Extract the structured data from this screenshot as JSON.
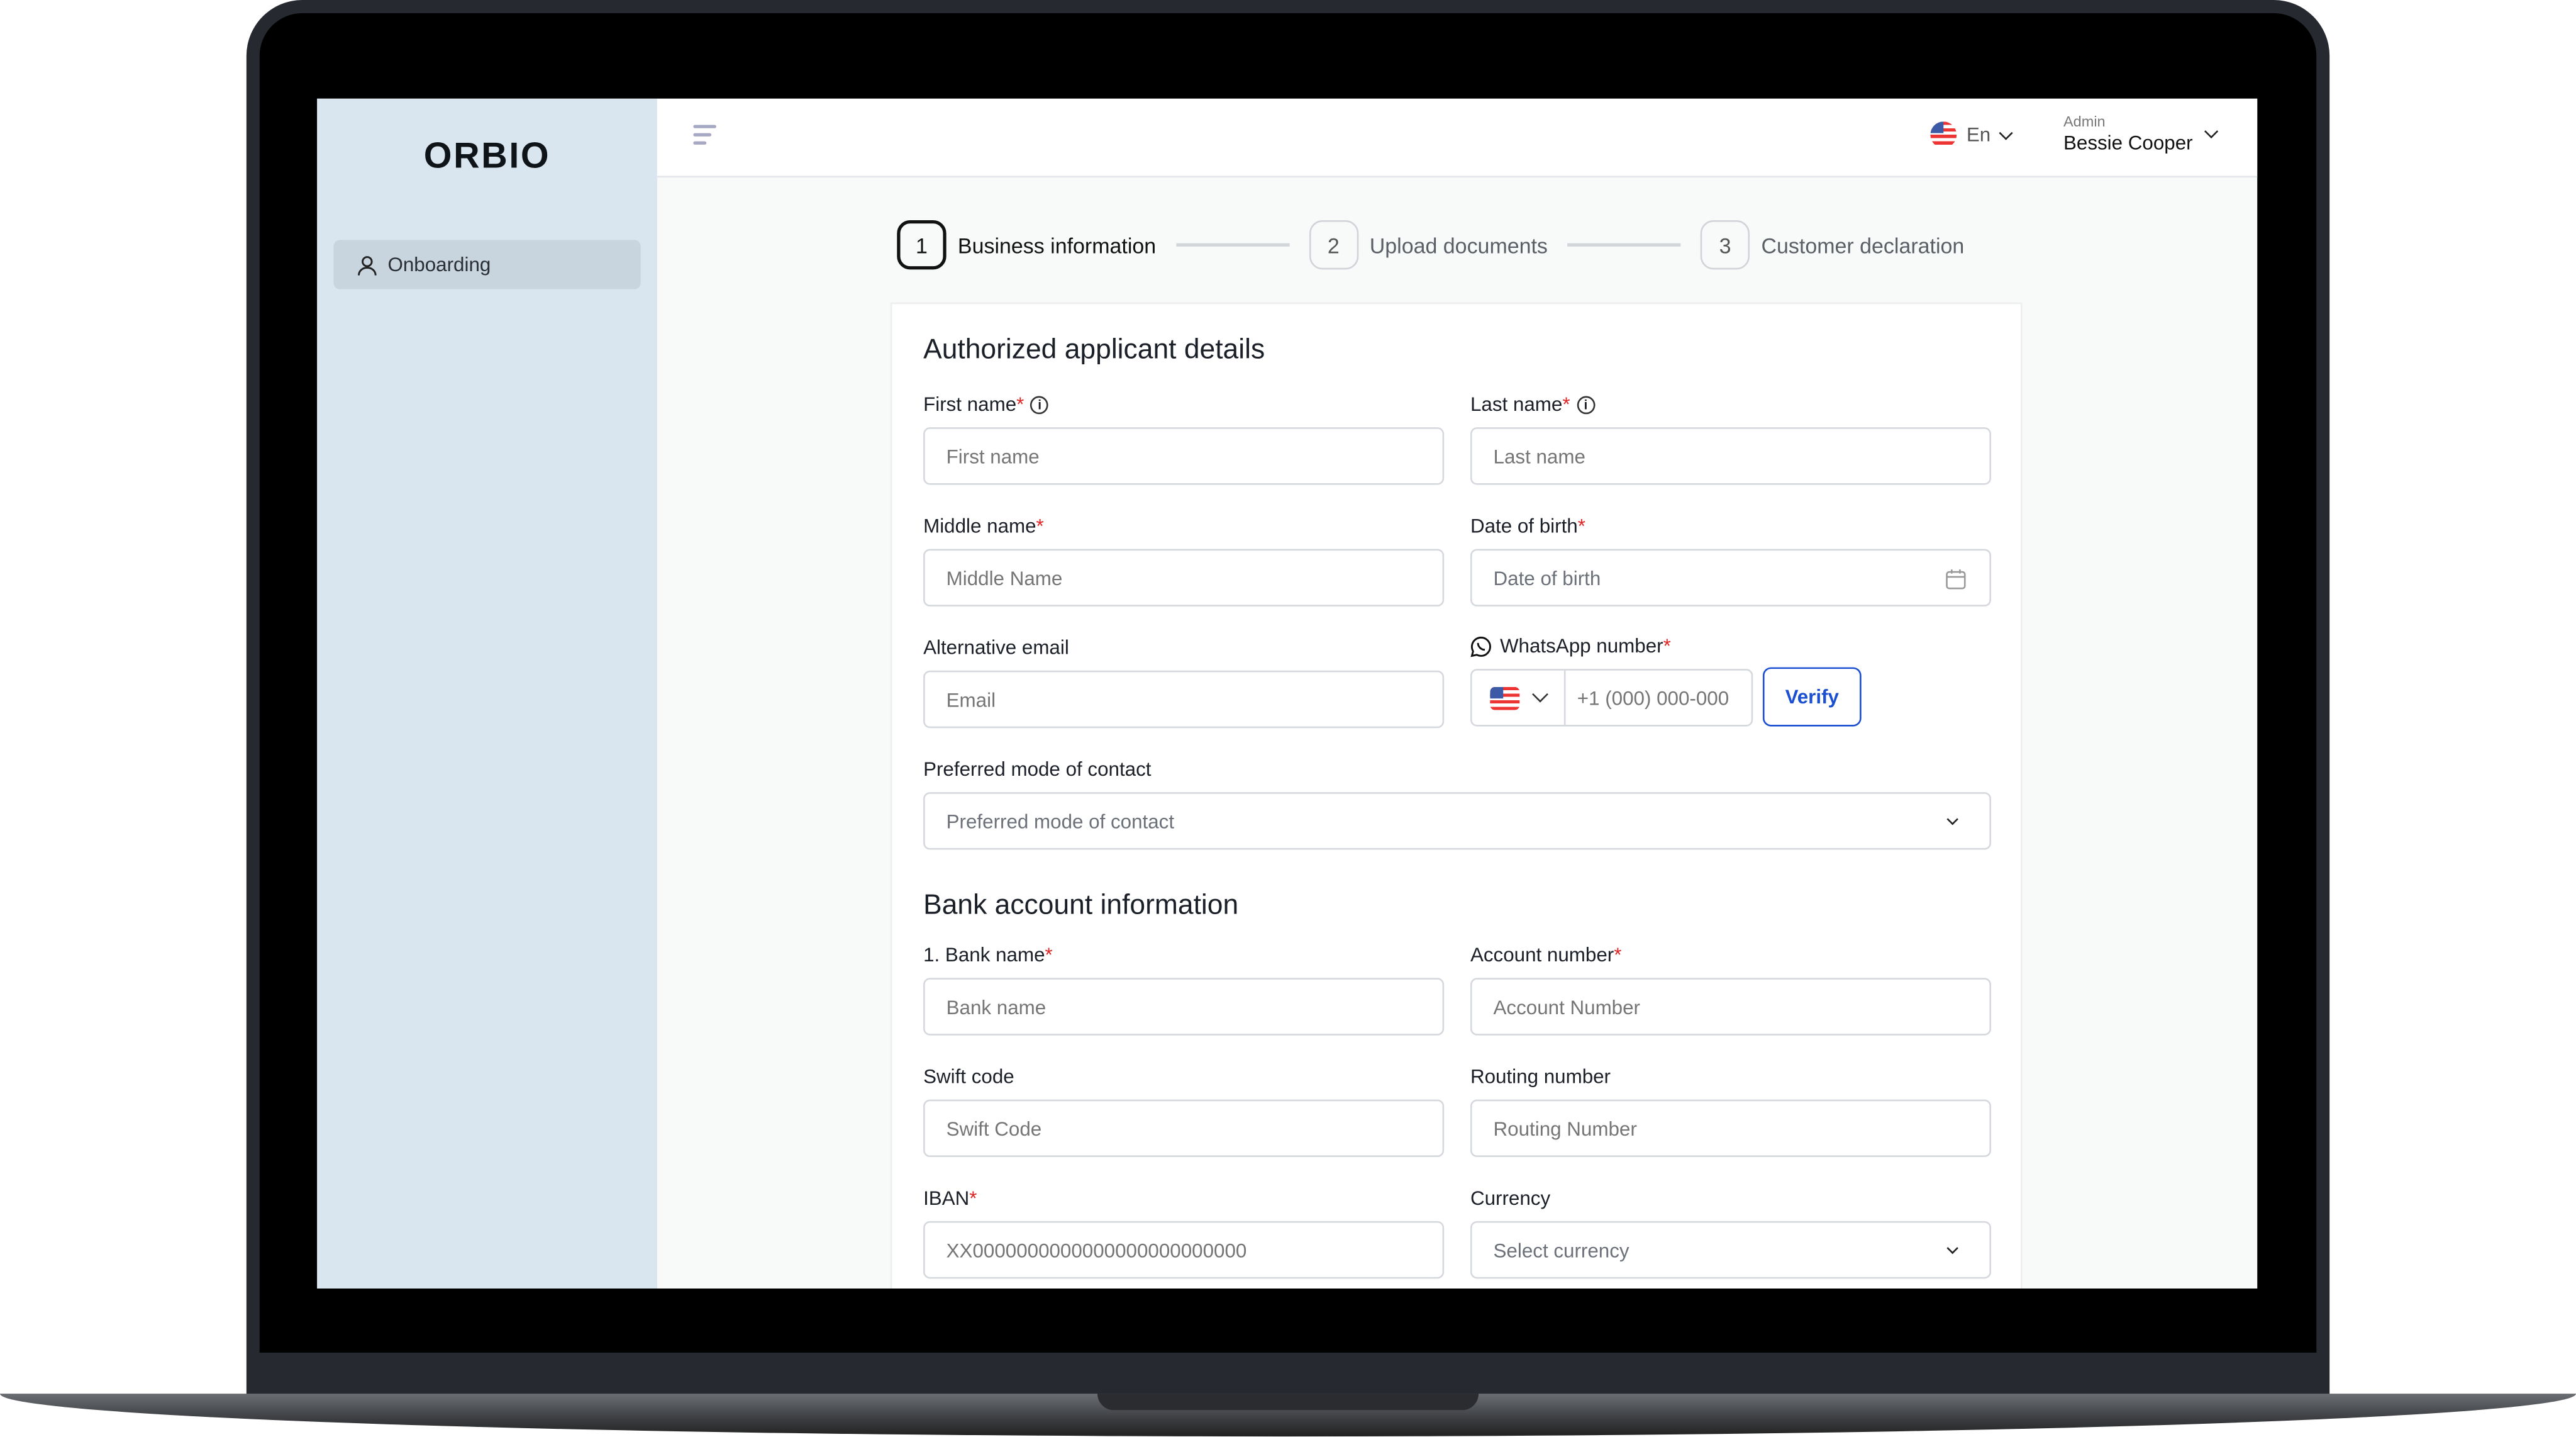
{
  "app": {
    "logo": "ORBIO"
  },
  "sidebar": {
    "items": [
      {
        "label": "Onboarding",
        "icon": "user-icon"
      }
    ]
  },
  "header": {
    "language": "En",
    "user_role": "Admin",
    "user_name": "Bessie Cooper"
  },
  "stepper": {
    "steps": [
      {
        "number": "1",
        "label": "Business information",
        "active": true
      },
      {
        "number": "2",
        "label": "Upload documents",
        "active": false
      },
      {
        "number": "3",
        "label": "Customer declaration",
        "active": false
      }
    ]
  },
  "colors": {
    "accent": "#1a4fd1",
    "required": "#e02424",
    "sidebar": "#d9e6ef"
  },
  "applicant": {
    "title": "Authorized applicant details",
    "first_name": {
      "label": "First name",
      "placeholder": "First name"
    },
    "last_name": {
      "label": "Last name",
      "placeholder": "Last name"
    },
    "middle_name": {
      "label": "Middle name",
      "placeholder": "Middle Name"
    },
    "dob": {
      "label": "Date of birth",
      "placeholder": "Date of birth"
    },
    "alt_email": {
      "label": "Alternative email",
      "placeholder": "Email"
    },
    "whatsapp": {
      "label": "WhatsApp number",
      "placeholder": "+1 (000) 000-000",
      "verify": "Verify"
    },
    "contact_mode": {
      "label": "Preferred mode of contact",
      "placeholder": "Preferred mode of contact"
    }
  },
  "bank": {
    "title": "Bank account information",
    "bank_name": {
      "label": "1. Bank name",
      "placeholder": "Bank name"
    },
    "account_number": {
      "label": "Account number",
      "placeholder": "Account Number"
    },
    "swift": {
      "label": "Swift code",
      "placeholder": "Swift Code"
    },
    "routing": {
      "label": "Routing number",
      "placeholder": "Routing Number"
    },
    "iban": {
      "label": "IBAN",
      "placeholder": "XX0000000000000000000000000"
    },
    "currency": {
      "label": "Currency",
      "placeholder": "Select currency"
    }
  },
  "required_mark": "*"
}
